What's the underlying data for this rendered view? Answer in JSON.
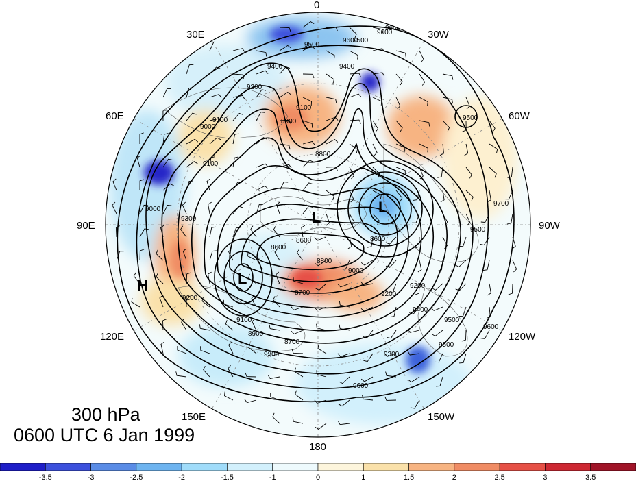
{
  "caption": {
    "level": "300 hPa",
    "time": "0600 UTC 6 Jan 1999"
  },
  "longitude_labels": [
    "0",
    "30W",
    "60W",
    "90W",
    "120W",
    "150W",
    "180",
    "150E",
    "120E",
    "90E",
    "60E",
    "30E"
  ],
  "contour_labels": [
    "9600",
    "9500",
    "9600",
    "9400",
    "9500",
    "9200",
    "9400",
    "9100",
    "9100",
    "9000",
    "8900",
    "8800",
    "9100",
    "9000",
    "9300",
    "9200",
    "8600",
    "8700",
    "8600",
    "8800",
    "9000",
    "9200",
    "9500",
    "9300",
    "9100",
    "8900",
    "8700",
    "9300",
    "9400",
    "9500",
    "9600",
    "9600",
    "9500",
    "9700",
    "9200",
    "8600",
    "9600",
    "9500"
  ],
  "centers": {
    "low_arctic": "L",
    "low_canada": "L",
    "low_siberia": "L",
    "high_asia": "H"
  },
  "colorbar": {
    "ticks": [
      "-3.5",
      "-3",
      "-2.5",
      "-2",
      "-1.5",
      "-1",
      "0",
      "1",
      "1.5",
      "2",
      "2.5",
      "3",
      "3.5"
    ],
    "colors": [
      "#1e1ec8",
      "#3c50dc",
      "#5a8ce6",
      "#6eb4f0",
      "#a0dcfa",
      "#d2f0fc",
      "#eefafd",
      "#fdf5dc",
      "#fae1aa",
      "#f7b482",
      "#f08c64",
      "#e65046",
      "#cd2832",
      "#a01428"
    ]
  }
}
